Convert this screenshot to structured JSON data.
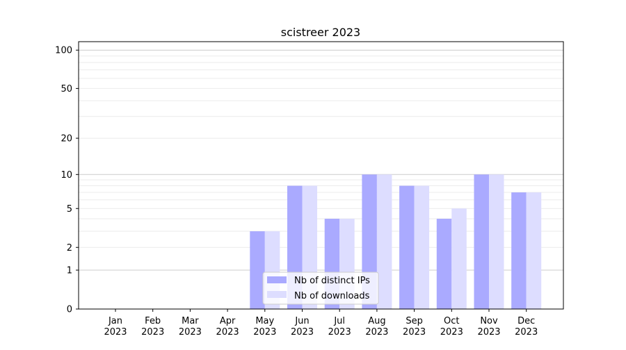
{
  "chart_data": {
    "type": "bar",
    "title": "scistreer 2023",
    "xlabel": "",
    "ylabel": "",
    "y_scale": "log(1+y)",
    "ylim": [
      0,
      116
    ],
    "yticks": [
      0,
      1,
      2,
      5,
      10,
      20,
      50,
      100
    ],
    "grid": true,
    "legend_position": "lower center",
    "categories": [
      [
        "Jan",
        "2023"
      ],
      [
        "Feb",
        "2023"
      ],
      [
        "Mar",
        "2023"
      ],
      [
        "Apr",
        "2023"
      ],
      [
        "May",
        "2023"
      ],
      [
        "Jun",
        "2023"
      ],
      [
        "Jul",
        "2023"
      ],
      [
        "Aug",
        "2023"
      ],
      [
        "Sep",
        "2023"
      ],
      [
        "Oct",
        "2023"
      ],
      [
        "Nov",
        "2023"
      ],
      [
        "Dec",
        "2023"
      ]
    ],
    "series": [
      {
        "name": "Nb of distinct IPs",
        "color": "#aaaaff",
        "values": [
          0,
          0,
          0,
          0,
          3,
          8,
          4,
          10,
          8,
          4,
          10,
          7
        ]
      },
      {
        "name": "Nb of downloads",
        "color": "#ddddff",
        "values": [
          0,
          0,
          0,
          0,
          3,
          8,
          4,
          10,
          8,
          5,
          10,
          7
        ]
      }
    ]
  }
}
